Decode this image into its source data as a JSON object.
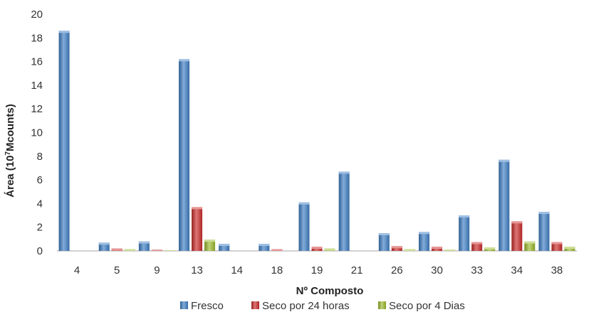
{
  "chart_data": {
    "type": "bar",
    "xlabel": "Nº Composto",
    "ylabel_main": "Área (10",
    "ylabel_sup": "7",
    "ylabel_end": "Mcounts)",
    "ylim": [
      0,
      20
    ],
    "yticks": [
      0,
      2,
      4,
      6,
      8,
      10,
      12,
      14,
      16,
      18,
      20
    ],
    "grid": false,
    "legend_position": "bottom",
    "categories": [
      "4",
      "5",
      "9",
      "13",
      "14",
      "18",
      "19",
      "21",
      "26",
      "30",
      "33",
      "34",
      "38"
    ],
    "series": [
      {
        "name": "Fresco",
        "color": "#3f7fc4",
        "values": [
          18.6,
          0.7,
          0.8,
          16.2,
          0.6,
          0.6,
          4.1,
          6.7,
          1.5,
          1.6,
          3.0,
          7.7,
          3.3
        ]
      },
      {
        "name": "Seco por 24 horas",
        "color": "#cc2b2b",
        "values": [
          0,
          0.2,
          0.1,
          3.7,
          0,
          0.15,
          0.35,
          0,
          0.4,
          0.35,
          0.75,
          2.5,
          0.75
        ]
      },
      {
        "name": "Seco por 4 Dias",
        "color": "#9bbb2c",
        "values": [
          0,
          0.15,
          0.05,
          0.95,
          0,
          0,
          0.2,
          0,
          0.15,
          0.1,
          0.3,
          0.8,
          0.35
        ]
      }
    ]
  }
}
